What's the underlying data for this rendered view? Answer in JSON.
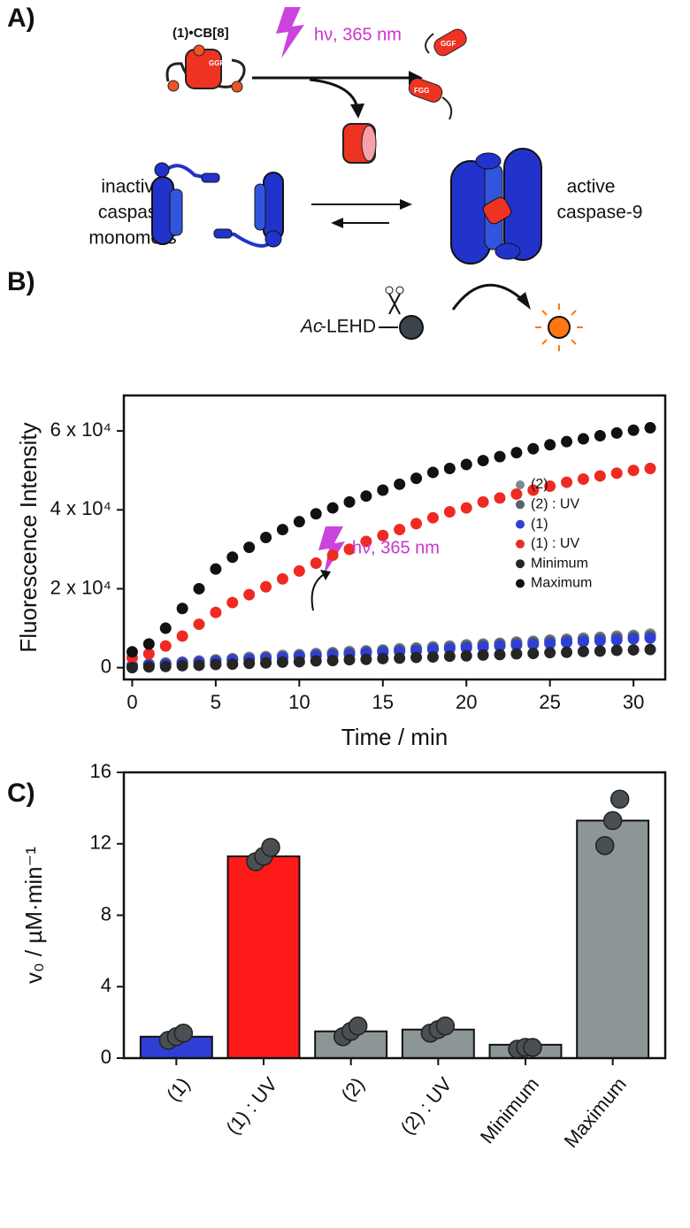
{
  "panel_labels": [
    "A)",
    "B)",
    "C)"
  ],
  "diagram": {
    "complex_label": "(1)•CB[8]",
    "light": "hν, 365 nm",
    "peptide_labels": [
      "GGF",
      "FGG"
    ],
    "inactive": [
      "inactive",
      "caspase",
      "monomers"
    ],
    "active": [
      "active",
      "caspase-9"
    ],
    "substrate_prefix": "Ac",
    "substrate": "-LEHD"
  },
  "chart_data": [
    {
      "type": "scatter",
      "xlabel": "Time / min",
      "ylabel": "Fluorescence Intensity",
      "annotation": "hν, 365 nm",
      "xlim": [
        -0.5,
        31.9
      ],
      "ylim": [
        -3000,
        69000
      ],
      "xticks": [
        0,
        5,
        10,
        15,
        20,
        25,
        30
      ],
      "yticks": [
        0,
        {
          "value": 20000,
          "label": "2 x 10⁴"
        },
        {
          "value": 40000,
          "label": "4 x 10⁴"
        },
        {
          "value": 60000,
          "label": "6 x 10⁴"
        }
      ],
      "legend": "right",
      "x": [
        0,
        1,
        2,
        3,
        4,
        5,
        6,
        7,
        8,
        9,
        10,
        11,
        12,
        13,
        14,
        15,
        16,
        17,
        18,
        19,
        20,
        21,
        22,
        23,
        24,
        25,
        26,
        27,
        28,
        29,
        30,
        31
      ],
      "series": [
        {
          "name": "(2)",
          "color": "#7d8a8c",
          "values": [
            600,
            900,
            1200,
            1400,
            1700,
            2000,
            2300,
            2600,
            2800,
            3100,
            3300,
            3600,
            3800,
            4100,
            4300,
            4500,
            4800,
            5000,
            5300,
            5500,
            5800,
            6000,
            6200,
            6500,
            6700,
            7000,
            7200,
            7500,
            7700,
            8000,
            8200,
            8500
          ]
        },
        {
          "name": "(2) : UV",
          "color": "#56616a",
          "values": [
            500,
            800,
            1000,
            1300,
            1500,
            1800,
            2100,
            2300,
            2600,
            2800,
            3100,
            3300,
            3600,
            3800,
            4000,
            4300,
            4500,
            4800,
            5000,
            5200,
            5500,
            5700,
            6000,
            6200,
            6400,
            6700,
            6900,
            7100,
            7400,
            7600,
            7800,
            8000
          ]
        },
        {
          "name": "(1)",
          "color": "#2f3fd6",
          "values": [
            500,
            700,
            900,
            1200,
            1400,
            1600,
            1900,
            2100,
            2300,
            2500,
            2800,
            3000,
            3200,
            3400,
            3700,
            3900,
            4100,
            4300,
            4600,
            4800,
            5000,
            5200,
            5500,
            5700,
            5900,
            6100,
            6400,
            6600,
            6800,
            7000,
            7300,
            7500
          ]
        },
        {
          "name": "(1) : UV",
          "color": "#ee2a22",
          "values": [
            2500,
            3500,
            5500,
            8000,
            11000,
            14000,
            16500,
            18500,
            20500,
            22500,
            24500,
            26500,
            28500,
            30000,
            32000,
            33500,
            35000,
            36500,
            38000,
            39500,
            40500,
            42000,
            43000,
            44000,
            45000,
            46000,
            47000,
            47800,
            48600,
            49300,
            50000,
            50500
          ]
        },
        {
          "name": "Minimum",
          "color": "#252525",
          "values": [
            0,
            200,
            300,
            500,
            600,
            800,
            900,
            1100,
            1200,
            1400,
            1500,
            1700,
            1800,
            2000,
            2100,
            2300,
            2400,
            2600,
            2700,
            2900,
            3000,
            3200,
            3300,
            3500,
            3600,
            3800,
            3900,
            4100,
            4200,
            4400,
            4500,
            4600
          ]
        },
        {
          "name": "Maximum",
          "color": "#111111",
          "values": [
            4000,
            6000,
            10000,
            15000,
            20000,
            25000,
            28000,
            30500,
            33000,
            35000,
            37000,
            39000,
            40500,
            42000,
            43500,
            45000,
            46500,
            48000,
            49500,
            50500,
            51500,
            52500,
            53500,
            54500,
            55500,
            56500,
            57300,
            58000,
            58800,
            59500,
            60200,
            60800
          ]
        }
      ]
    },
    {
      "type": "bar",
      "ylabel": "v₀ / µM·min⁻¹",
      "ylim": [
        0,
        16
      ],
      "yticks": [
        0,
        4,
        8,
        12,
        16
      ],
      "categories": [
        "(1)",
        "(1) : UV",
        "(2)",
        "(2) : UV",
        "Minimum",
        "Maximum"
      ],
      "values": [
        1.2,
        11.3,
        1.5,
        1.6,
        0.75,
        13.3
      ],
      "colors": [
        "#2f3fd6",
        "#ff1a1a",
        "#8c9696",
        "#8c9696",
        "#8c9696",
        "#8c9696"
      ],
      "point_color": "#4a4f54",
      "points": [
        [
          1.0,
          1.2,
          1.4
        ],
        [
          11.0,
          11.3,
          11.8
        ],
        [
          1.2,
          1.5,
          1.8
        ],
        [
          1.4,
          1.6,
          1.8
        ],
        [
          0.5,
          0.6,
          0.6
        ],
        [
          11.9,
          13.3,
          14.5
        ]
      ]
    }
  ]
}
